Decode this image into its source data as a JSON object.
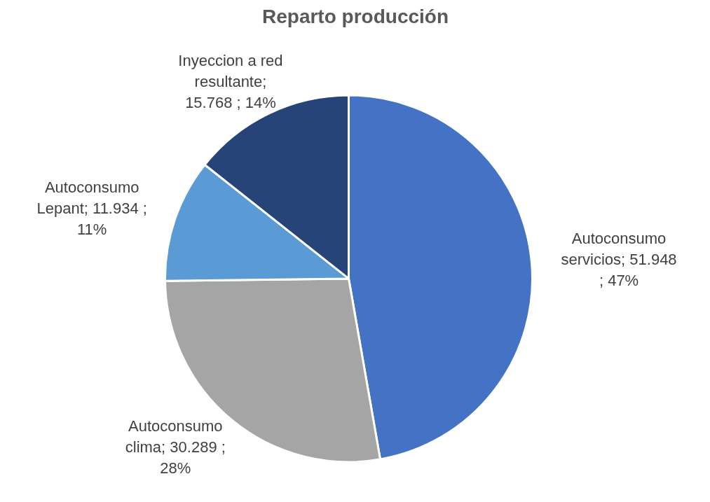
{
  "chart_data": {
    "type": "pie",
    "title": "Reparto producción",
    "categories": [
      "Autoconsumo servicios",
      "Autoconsumo clima",
      "Autoconsumo Lepant",
      "Inyeccion a red resultante"
    ],
    "values": [
      51.948,
      30.289,
      11.934,
      15.768
    ],
    "value_labels": [
      "; 51.948 ; 47%",
      "; 30.289 ; 28%",
      "; 11.934 ; 11%",
      "; 15.768 ; 14%"
    ],
    "colors": [
      "#4472c4",
      "#a5a5a5",
      "#5b9bd5",
      "#264478"
    ]
  }
}
